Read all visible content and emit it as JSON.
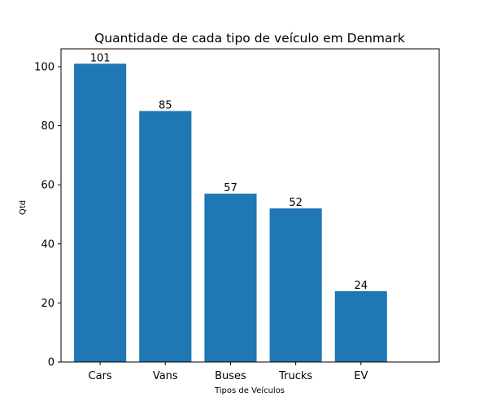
{
  "chart_data": {
    "type": "bar",
    "title": "Quantidade de cada tipo de veículo em Denmark",
    "xlabel": "Tipos de Veículos",
    "ylabel": "Qtd",
    "categories": [
      "Cars",
      "Vans",
      "Buses",
      "Trucks",
      "EV"
    ],
    "values": [
      101,
      85,
      57,
      52,
      24
    ],
    "data_labels": [
      "101",
      "85",
      "57",
      "52",
      "24"
    ],
    "ylim": [
      0,
      106.05
    ],
    "yticks": [
      0,
      20,
      40,
      60,
      80,
      100
    ],
    "ytick_labels": [
      "0",
      "20",
      "40",
      "60",
      "80",
      "100"
    ],
    "grid": false,
    "bar_color": "#1f77b4"
  }
}
